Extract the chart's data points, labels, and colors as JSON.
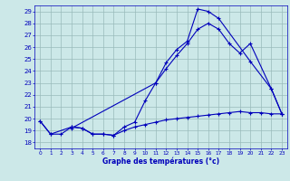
{
  "xlabel": "Graphe des températures (°c)",
  "bg_color": "#cce8e8",
  "line_color": "#0000bb",
  "grid_color": "#99bbbb",
  "tick_color": "#0000bb",
  "ylim": [
    17.5,
    29.5
  ],
  "xlim": [
    -0.5,
    23.5
  ],
  "yticks": [
    18,
    19,
    20,
    21,
    22,
    23,
    24,
    25,
    26,
    27,
    28,
    29
  ],
  "xticks": [
    0,
    1,
    2,
    3,
    4,
    5,
    6,
    7,
    8,
    9,
    10,
    11,
    12,
    13,
    14,
    15,
    16,
    17,
    18,
    19,
    20,
    21,
    22,
    23
  ],
  "s1_x": [
    0,
    1,
    3,
    4,
    5,
    6,
    7,
    8,
    9,
    10,
    11,
    12,
    13,
    14,
    15,
    16,
    17,
    20,
    22,
    23
  ],
  "s1_y": [
    19.8,
    18.7,
    19.3,
    19.2,
    18.7,
    18.7,
    18.6,
    19.3,
    19.7,
    21.5,
    23.0,
    24.7,
    25.8,
    26.5,
    29.2,
    29.0,
    28.4,
    24.8,
    22.5,
    20.4
  ],
  "s2_x": [
    3,
    11,
    12,
    13,
    14,
    15,
    16,
    17,
    18,
    19,
    20,
    22,
    23
  ],
  "s2_y": [
    19.2,
    23.0,
    24.2,
    25.3,
    26.3,
    27.5,
    28.0,
    27.5,
    26.3,
    25.5,
    26.3,
    22.5,
    20.4
  ],
  "s3_x": [
    0,
    1,
    2,
    3,
    4,
    5,
    6,
    7,
    8,
    9,
    10,
    11,
    12,
    13,
    14,
    15,
    16,
    17,
    18,
    19,
    20,
    21,
    22,
    23
  ],
  "s3_y": [
    19.8,
    18.7,
    18.7,
    19.3,
    19.2,
    18.7,
    18.7,
    18.6,
    19.0,
    19.3,
    19.5,
    19.7,
    19.9,
    20.0,
    20.1,
    20.2,
    20.3,
    20.4,
    20.5,
    20.6,
    20.5,
    20.5,
    20.4,
    20.4
  ]
}
